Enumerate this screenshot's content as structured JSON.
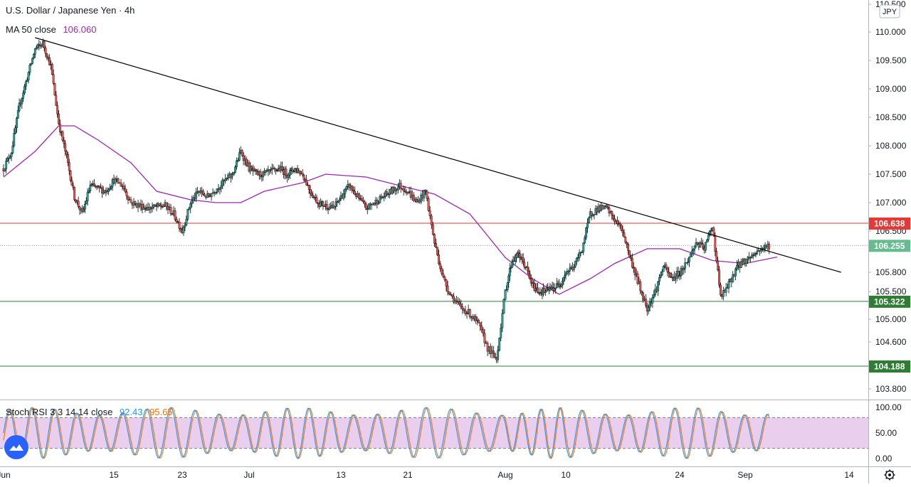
{
  "header": {
    "symbol_title": "U.S. Dollar / Japanese Yen · 4h",
    "ma_label": "MA 50 close",
    "ma_value": "106.060",
    "currency_badge": "JPY"
  },
  "stoch": {
    "label": "Stoch RSI 3 3 14 14 close",
    "k_value": "92.43",
    "d_value": "95.65"
  },
  "colors": {
    "up": "#26a69a",
    "down": "#ef5350",
    "ma": "#9c27b0",
    "resistance_line": "#e53935",
    "support_line": "#2e7d32",
    "trendline": "#000000",
    "k_line": "#2196f3",
    "d_line": "#ff6d00",
    "stoch_band": "#e1bee7"
  },
  "chart_data": [
    {
      "type": "candlestick",
      "title": "U.S. Dollar / Japanese Yen · 4h",
      "y_axis": {
        "range": [
          103.6,
          110.55
        ],
        "ticks": [
          "110.500",
          "110.000",
          "109.500",
          "109.000",
          "108.500",
          "108.000",
          "107.500",
          "107.000",
          "106.500",
          "105.800",
          "105.500",
          "105.000",
          "104.600",
          "103.800"
        ],
        "tick_values": [
          110.5,
          110.0,
          109.5,
          109.0,
          108.5,
          108.0,
          107.5,
          107.0,
          106.5,
          105.8,
          105.5,
          105.0,
          104.6,
          103.8
        ]
      },
      "x_axis": {
        "ticks": [
          "Jun",
          "15",
          "23",
          "Jul",
          "13",
          "21",
          "Aug",
          "10",
          "24",
          "Sep",
          "14"
        ],
        "tick_dates": [
          "2020-06-01",
          "2020-06-15",
          "2020-06-23",
          "2020-07-01",
          "2020-07-13",
          "2020-07-21",
          "2020-08-01",
          "2020-08-10",
          "2020-08-24",
          "2020-09-01",
          "2020-09-14"
        ]
      },
      "price_path": [
        [
          "2020-06-01",
          107.6
        ],
        [
          "2020-06-02",
          107.9
        ],
        [
          "2020-06-03",
          108.7
        ],
        [
          "2020-06-04",
          109.2
        ],
        [
          "2020-06-05",
          109.7
        ],
        [
          "2020-06-06",
          109.8
        ],
        [
          "2020-06-07",
          109.4
        ],
        [
          "2020-06-08",
          108.4
        ],
        [
          "2020-06-09",
          107.8
        ],
        [
          "2020-06-10",
          107.1
        ],
        [
          "2020-06-11",
          106.8
        ],
        [
          "2020-06-12",
          107.3
        ],
        [
          "2020-06-14",
          107.2
        ],
        [
          "2020-06-15",
          107.4
        ],
        [
          "2020-06-16",
          107.3
        ],
        [
          "2020-06-17",
          107.0
        ],
        [
          "2020-06-18",
          106.95
        ],
        [
          "2020-06-19",
          106.9
        ],
        [
          "2020-06-21",
          106.95
        ],
        [
          "2020-06-22",
          106.8
        ],
        [
          "2020-06-23",
          106.5
        ],
        [
          "2020-06-24",
          107.0
        ],
        [
          "2020-06-25",
          107.2
        ],
        [
          "2020-06-26",
          107.1
        ],
        [
          "2020-06-29",
          107.5
        ],
        [
          "2020-06-30",
          107.9
        ],
        [
          "2020-07-01",
          107.6
        ],
        [
          "2020-07-02",
          107.5
        ],
        [
          "2020-07-03",
          107.5
        ],
        [
          "2020-07-05",
          107.6
        ],
        [
          "2020-07-06",
          107.5
        ],
        [
          "2020-07-07",
          107.6
        ],
        [
          "2020-07-08",
          107.5
        ],
        [
          "2020-07-09",
          107.2
        ],
        [
          "2020-07-10",
          107.0
        ],
        [
          "2020-07-12",
          106.9
        ],
        [
          "2020-07-13",
          107.1
        ],
        [
          "2020-07-14",
          107.3
        ],
        [
          "2020-07-15",
          107.1
        ],
        [
          "2020-07-16",
          106.9
        ],
        [
          "2020-07-17",
          107.0
        ],
        [
          "2020-07-19",
          107.2
        ],
        [
          "2020-07-20",
          107.3
        ],
        [
          "2020-07-21",
          107.2
        ],
        [
          "2020-07-22",
          107.0
        ],
        [
          "2020-07-23",
          107.2
        ],
        [
          "2020-07-24",
          106.3
        ],
        [
          "2020-07-25",
          105.7
        ],
        [
          "2020-07-26",
          105.4
        ],
        [
          "2020-07-27",
          105.2
        ],
        [
          "2020-07-28",
          105.1
        ],
        [
          "2020-07-29",
          104.9
        ],
        [
          "2020-07-30",
          104.5
        ],
        [
          "2020-07-31",
          104.3
        ],
        [
          "2020-08-01",
          105.5
        ],
        [
          "2020-08-02",
          106.0
        ],
        [
          "2020-08-03",
          106.1
        ],
        [
          "2020-08-04",
          105.9
        ],
        [
          "2020-08-05",
          105.6
        ],
        [
          "2020-08-06",
          105.5
        ],
        [
          "2020-08-07",
          105.5
        ],
        [
          "2020-08-09",
          105.6
        ],
        [
          "2020-08-10",
          105.8
        ],
        [
          "2020-08-11",
          105.9
        ],
        [
          "2020-08-12",
          106.2
        ],
        [
          "2020-08-13",
          106.8
        ],
        [
          "2020-08-14",
          106.9
        ],
        [
          "2020-08-15",
          106.9
        ],
        [
          "2020-08-16",
          106.7
        ],
        [
          "2020-08-17",
          106.5
        ],
        [
          "2020-08-18",
          106.0
        ],
        [
          "2020-08-19",
          105.6
        ],
        [
          "2020-08-20",
          105.2
        ],
        [
          "2020-08-21",
          105.5
        ],
        [
          "2020-08-22",
          105.9
        ],
        [
          "2020-08-23",
          105.7
        ],
        [
          "2020-08-24",
          105.8
        ],
        [
          "2020-08-25",
          106.0
        ],
        [
          "2020-08-26",
          106.3
        ],
        [
          "2020-08-27",
          106.2
        ],
        [
          "2020-08-28",
          106.6
        ],
        [
          "2020-08-29",
          105.4
        ],
        [
          "2020-08-30",
          105.6
        ],
        [
          "2020-08-31",
          105.9
        ],
        [
          "2020-09-01",
          106.0
        ],
        [
          "2020-09-02",
          106.1
        ],
        [
          "2020-09-03",
          106.2
        ],
        [
          "2020-09-04",
          106.255
        ]
      ],
      "ma50_path": [
        [
          "2020-06-01",
          107.45
        ],
        [
          "2020-06-05",
          107.9
        ],
        [
          "2020-06-08",
          108.35
        ],
        [
          "2020-06-10",
          108.35
        ],
        [
          "2020-06-13",
          108.1
        ],
        [
          "2020-06-17",
          107.7
        ],
        [
          "2020-06-20",
          107.2
        ],
        [
          "2020-06-24",
          107.05
        ],
        [
          "2020-06-27",
          107.0
        ],
        [
          "2020-06-30",
          107.0
        ],
        [
          "2020-07-03",
          107.2
        ],
        [
          "2020-07-08",
          107.35
        ],
        [
          "2020-07-11",
          107.5
        ],
        [
          "2020-07-16",
          107.45
        ],
        [
          "2020-07-20",
          107.3
        ],
        [
          "2020-07-24",
          107.15
        ],
        [
          "2020-07-28",
          106.8
        ],
        [
          "2020-08-01",
          106.05
        ],
        [
          "2020-08-05",
          105.7
        ],
        [
          "2020-08-09",
          105.45
        ],
        [
          "2020-08-13",
          105.7
        ],
        [
          "2020-08-16",
          105.95
        ],
        [
          "2020-08-20",
          106.2
        ],
        [
          "2020-08-24",
          106.2
        ],
        [
          "2020-08-28",
          106.0
        ],
        [
          "2020-09-01",
          105.95
        ],
        [
          "2020-09-05",
          106.06
        ]
      ],
      "trendline": [
        [
          "2020-06-05",
          109.9
        ],
        [
          "2020-09-13",
          105.8
        ]
      ],
      "horizontal_levels": [
        {
          "label": "106.638",
          "value": 106.638,
          "color": "#e53935"
        },
        {
          "label": "105.322",
          "value": 105.322,
          "color": "#2e7d32"
        },
        {
          "label": "104.188",
          "value": 104.188,
          "color": "#2e7d32"
        }
      ],
      "last_price": {
        "label": "106.255",
        "value": 106.255
      }
    },
    {
      "type": "line",
      "title": "Stoch RSI 3 3 14 14 close",
      "y_axis": {
        "range": [
          -8,
          108
        ],
        "ticks": [
          "100.00",
          "50.00",
          "0.00"
        ],
        "tick_values": [
          100,
          50,
          0
        ]
      },
      "bands": {
        "upper": 80,
        "lower": 20
      },
      "series": [
        {
          "name": "K",
          "value": "92.43",
          "color": "#2196f3"
        },
        {
          "name": "D",
          "value": "95.65",
          "color": "#ff6d00"
        }
      ]
    }
  ]
}
